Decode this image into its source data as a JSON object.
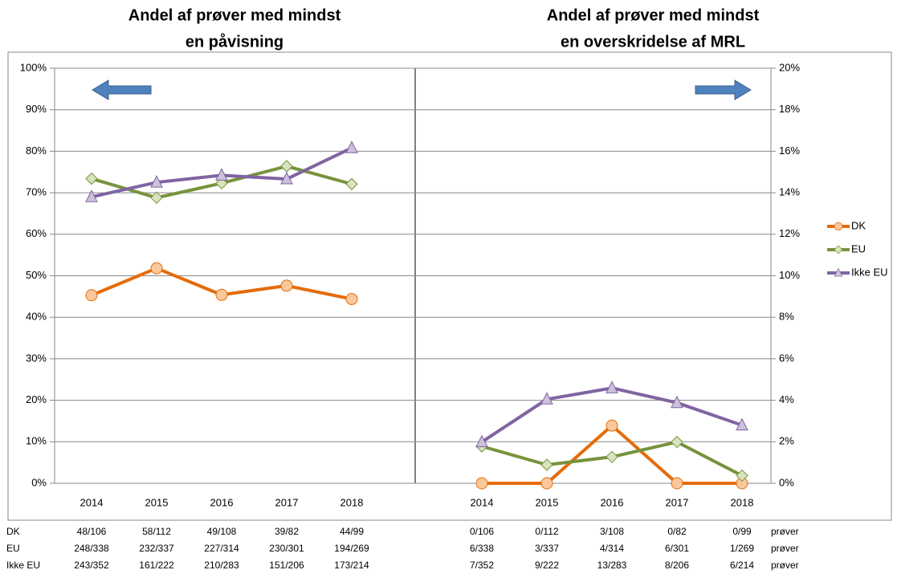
{
  "chart_data": [
    {
      "type": "line",
      "title": [
        "Andel af prøver med mindst",
        "en påvisning"
      ],
      "categories": [
        "2014",
        "2015",
        "2016",
        "2017",
        "2018"
      ],
      "ylim": [
        0,
        100
      ],
      "yticks": [
        {
          "value": 0,
          "label": "0%"
        },
        {
          "value": 10,
          "label": "10%"
        },
        {
          "value": 20,
          "label": "20%"
        },
        {
          "value": 30,
          "label": "30%"
        },
        {
          "value": 40,
          "label": "40%"
        },
        {
          "value": 50,
          "label": "50%"
        },
        {
          "value": 60,
          "label": "60%"
        },
        {
          "value": 70,
          "label": "70%"
        },
        {
          "value": 80,
          "label": "80%"
        },
        {
          "value": 90,
          "label": "90%"
        },
        {
          "value": 100,
          "label": "100%"
        }
      ],
      "grid": true,
      "series": [
        {
          "name": "DK",
          "color": "#e46c0a",
          "marker_fill": "#fbc89b",
          "marker": "circle",
          "values": [
            45.3,
            51.8,
            45.4,
            47.6,
            44.4
          ]
        },
        {
          "name": "EU",
          "color": "#77933c",
          "marker_fill": "#d7e4bd",
          "marker": "diamond",
          "values": [
            73.4,
            68.8,
            72.3,
            76.4,
            72.1
          ]
        },
        {
          "name": "Ikke EU",
          "color": "#8064a2",
          "marker_fill": "#ccc1da",
          "marker": "triangle",
          "values": [
            69.0,
            72.5,
            74.2,
            73.3,
            80.8
          ]
        }
      ]
    },
    {
      "type": "line",
      "title": [
        "Andel af prøver med mindst",
        "en overskridelse af MRL"
      ],
      "categories": [
        "2014",
        "2015",
        "2016",
        "2017",
        "2018"
      ],
      "y2lim": [
        0,
        20
      ],
      "y2ticks": [
        {
          "value": 0,
          "label": "0%"
        },
        {
          "value": 2,
          "label": "2%"
        },
        {
          "value": 4,
          "label": "4%"
        },
        {
          "value": 6,
          "label": "6%"
        },
        {
          "value": 8,
          "label": "8%"
        },
        {
          "value": 10,
          "label": "10%"
        },
        {
          "value": 12,
          "label": "12%"
        },
        {
          "value": 14,
          "label": "14%"
        },
        {
          "value": 16,
          "label": "16%"
        },
        {
          "value": 18,
          "label": "18%"
        },
        {
          "value": 20,
          "label": "20%"
        }
      ],
      "legend": "right",
      "series": [
        {
          "name": "DK",
          "color": "#e46c0a",
          "marker_fill": "#fbc89b",
          "marker": "circle",
          "axis": "y2",
          "values": [
            0,
            0,
            2.78,
            0,
            0
          ]
        },
        {
          "name": "EU",
          "color": "#77933c",
          "marker_fill": "#d7e4bd",
          "marker": "diamond",
          "axis": "y2",
          "values": [
            1.78,
            0.89,
            1.27,
            1.99,
            0.37
          ]
        },
        {
          "name": "Ikke EU",
          "color": "#8064a2",
          "marker_fill": "#ccc1da",
          "marker": "triangle",
          "axis": "y2",
          "values": [
            1.99,
            4.05,
            4.59,
            3.88,
            2.8
          ]
        }
      ]
    }
  ],
  "table": {
    "rows": [
      {
        "label": "DK",
        "left": [
          "48/106",
          "58/112",
          "49/108",
          "39/82",
          "44/99"
        ],
        "right": [
          "0/106",
          "0/112",
          "3/108",
          "0/82",
          "0/99"
        ],
        "unit": "prøver"
      },
      {
        "label": "EU",
        "left": [
          "248/338",
          "232/337",
          "227/314",
          "230/301",
          "194/269"
        ],
        "right": [
          "6/338",
          "3/337",
          "4/314",
          "6/301",
          "1/269"
        ],
        "unit": "prøver"
      },
      {
        "label": "Ikke EU",
        "left": [
          "243/352",
          "161/222",
          "210/283",
          "151/206",
          "173/214"
        ],
        "right": [
          "7/352",
          "9/222",
          "13/283",
          "8/206",
          "6/214"
        ],
        "unit": "prøver"
      }
    ]
  }
}
